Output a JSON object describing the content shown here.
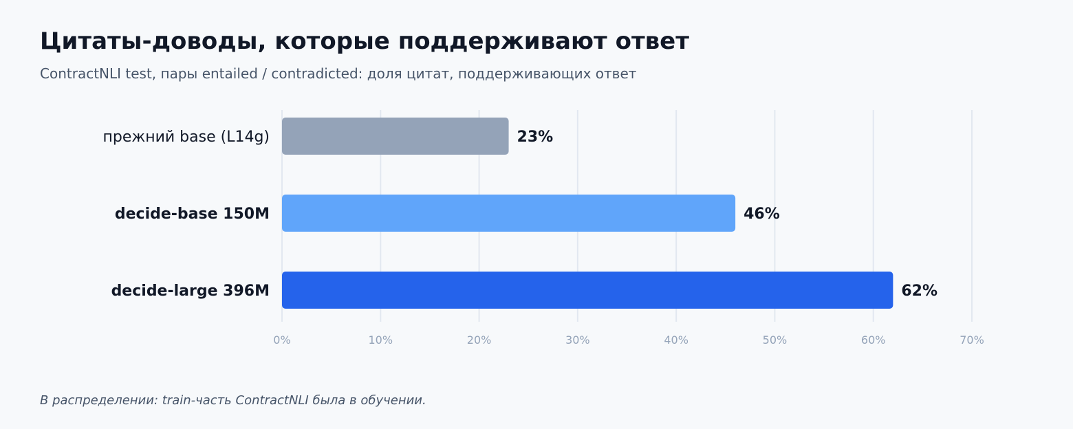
{
  "header": {
    "title": "Цитаты-доводы, которые поддерживают ответ",
    "subtitle": "ContractNLI test, пары entailed / contradicted: доля цитат, поддерживающих ответ"
  },
  "footnote": "В распределении: train-часть ContractNLI была в обучении.",
  "chart_data": {
    "type": "bar",
    "orientation": "horizontal",
    "categories": [
      "прежний base (L14g)",
      "decide-base 150M",
      "decide-large 396M"
    ],
    "values": [
      23,
      46,
      62
    ],
    "value_labels": [
      "23%",
      "46%",
      "62%"
    ],
    "category_bold": [
      false,
      true,
      true
    ],
    "colors": [
      "#94a3b8",
      "#60a5fa",
      "#2563eb"
    ],
    "xlim": [
      0,
      70
    ],
    "xticks": [
      0,
      10,
      20,
      30,
      40,
      50,
      60,
      70
    ],
    "xtick_labels": [
      "0%",
      "10%",
      "20%",
      "30%",
      "40%",
      "50%",
      "60%",
      "70%"
    ],
    "grid": true,
    "grid_color": "#e2e8f0",
    "tick_label_color": "#94a3b8",
    "text_color": "#111827",
    "legend": "none"
  }
}
